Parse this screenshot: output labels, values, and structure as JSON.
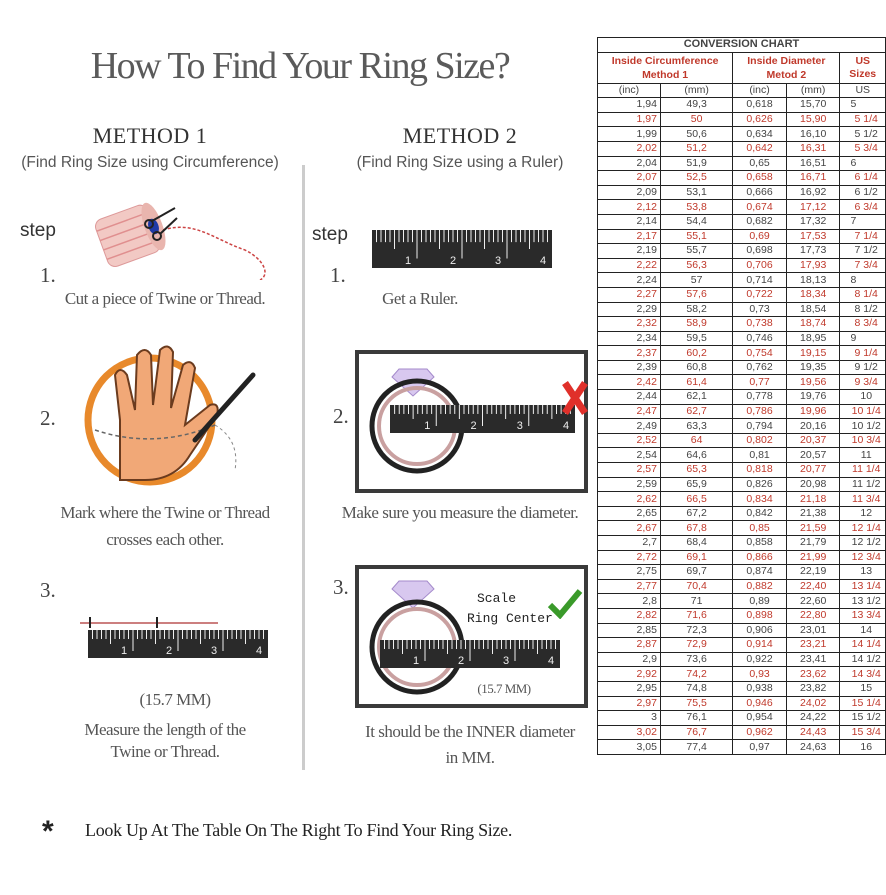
{
  "title": "How To Find Your Ring Size?",
  "step_label": "step",
  "ruler_labels": [
    "1",
    "2",
    "3",
    "4"
  ],
  "colors": {
    "accent_red": "#c0392b",
    "ruler": "#2a2a2a",
    "orange_circle": "#e8892b",
    "check_green": "#3a9a2a"
  },
  "method1": {
    "heading": "METHOD 1",
    "subtitle": "(Find Ring Size using Circumference)",
    "steps": [
      {
        "num": "1.",
        "text": "Cut a piece of  Twine or Thread."
      },
      {
        "num": "2.",
        "text_line1": "Mark where the Twine or Thread",
        "text_line2": "crosses each other."
      },
      {
        "num": "3.",
        "measure": "(15.7 MM)",
        "text_line1": "Measure the length of the",
        "text_line2": "Twine or Thread."
      }
    ]
  },
  "method2": {
    "heading": "METHOD 2",
    "subtitle": "(Find Ring Size using a Ruler)",
    "steps": [
      {
        "num": "1.",
        "text": "Get a Ruler."
      },
      {
        "num": "2.",
        "text": "Make sure you measure the diameter."
      },
      {
        "num": "3.",
        "scale_label": "Scale",
        "center_label": "Ring Center",
        "measure": "(15.7 MM)",
        "text_line1": "It should be the INNER diameter",
        "text_line2": "in MM."
      }
    ]
  },
  "footer": {
    "asterisk": "*",
    "text": "Look Up At The Table On The Right To Find Your Ring Size."
  },
  "table": {
    "title": "CONVERSION CHART",
    "group1": "Inside Circumference Method 1",
    "group2": "Inside Diameter Metod 2",
    "group3": "US Sizes",
    "units": [
      "(inc)",
      "(mm)",
      "(inc)",
      "(mm)",
      "US"
    ],
    "rows": [
      [
        "1,94",
        "49,3",
        "0,618",
        "15,70",
        "5"
      ],
      [
        "1,97",
        "50",
        "0,626",
        "15,90",
        "5 1/4"
      ],
      [
        "1,99",
        "50,6",
        "0,634",
        "16,10",
        "5 1/2"
      ],
      [
        "2,02",
        "51,2",
        "0,642",
        "16,31",
        "5 3/4"
      ],
      [
        "2,04",
        "51,9",
        "0,65",
        "16,51",
        "6"
      ],
      [
        "2,07",
        "52,5",
        "0,658",
        "16,71",
        "6 1/4"
      ],
      [
        "2,09",
        "53,1",
        "0,666",
        "16,92",
        "6 1/2"
      ],
      [
        "2,12",
        "53,8",
        "0,674",
        "17,12",
        "6 3/4"
      ],
      [
        "2,14",
        "54,4",
        "0,682",
        "17,32",
        "7"
      ],
      [
        "2,17",
        "55,1",
        "0,69",
        "17,53",
        "7 1/4"
      ],
      [
        "2,19",
        "55,7",
        "0,698",
        "17,73",
        "7 1/2"
      ],
      [
        "2,22",
        "56,3",
        "0,706",
        "17,93",
        "7 3/4"
      ],
      [
        "2,24",
        "57",
        "0,714",
        "18,13",
        "8"
      ],
      [
        "2,27",
        "57,6",
        "0,722",
        "18,34",
        "8 1/4"
      ],
      [
        "2,29",
        "58,2",
        "0,73",
        "18,54",
        "8 1/2"
      ],
      [
        "2,32",
        "58,9",
        "0,738",
        "18,74",
        "8 3/4"
      ],
      [
        "2,34",
        "59,5",
        "0,746",
        "18,95",
        "9"
      ],
      [
        "2,37",
        "60,2",
        "0,754",
        "19,15",
        "9 1/4"
      ],
      [
        "2,39",
        "60,8",
        "0,762",
        "19,35",
        "9 1/2"
      ],
      [
        "2,42",
        "61,4",
        "0,77",
        "19,56",
        "9 3/4"
      ],
      [
        "2,44",
        "62,1",
        "0,778",
        "19,76",
        "10"
      ],
      [
        "2,47",
        "62,7",
        "0,786",
        "19,96",
        "10 1/4"
      ],
      [
        "2,49",
        "63,3",
        "0,794",
        "20,16",
        "10 1/2"
      ],
      [
        "2,52",
        "64",
        "0,802",
        "20,37",
        "10 3/4"
      ],
      [
        "2,54",
        "64,6",
        "0,81",
        "20,57",
        "11"
      ],
      [
        "2,57",
        "65,3",
        "0,818",
        "20,77",
        "11 1/4"
      ],
      [
        "2,59",
        "65,9",
        "0,826",
        "20,98",
        "11 1/2"
      ],
      [
        "2,62",
        "66,5",
        "0,834",
        "21,18",
        "11 3/4"
      ],
      [
        "2,65",
        "67,2",
        "0,842",
        "21,38",
        "12"
      ],
      [
        "2,67",
        "67,8",
        "0,85",
        "21,59",
        "12 1/4"
      ],
      [
        "2,7",
        "68,4",
        "0,858",
        "21,79",
        "12 1/2"
      ],
      [
        "2,72",
        "69,1",
        "0,866",
        "21,99",
        "12 3/4"
      ],
      [
        "2,75",
        "69,7",
        "0,874",
        "22,19",
        "13"
      ],
      [
        "2,77",
        "70,4",
        "0,882",
        "22,40",
        "13 1/4"
      ],
      [
        "2,8",
        "71",
        "0,89",
        "22,60",
        "13 1/2"
      ],
      [
        "2,82",
        "71,6",
        "0,898",
        "22,80",
        "13 3/4"
      ],
      [
        "2,85",
        "72,3",
        "0,906",
        "23,01",
        "14"
      ],
      [
        "2,87",
        "72,9",
        "0,914",
        "23,21",
        "14 1/4"
      ],
      [
        "2,9",
        "73,6",
        "0,922",
        "23,41",
        "14 1/2"
      ],
      [
        "2,92",
        "74,2",
        "0,93",
        "23,62",
        "14 3/4"
      ],
      [
        "2,95",
        "74,8",
        "0,938",
        "23,82",
        "15"
      ],
      [
        "2,97",
        "75,5",
        "0,946",
        "24,02",
        "15 1/4"
      ],
      [
        "3",
        "76,1",
        "0,954",
        "24,22",
        "15 1/2"
      ],
      [
        "3,02",
        "76,7",
        "0,962",
        "24,43",
        "15 3/4"
      ],
      [
        "3,05",
        "77,4",
        "0,97",
        "24,63",
        "16"
      ]
    ]
  }
}
